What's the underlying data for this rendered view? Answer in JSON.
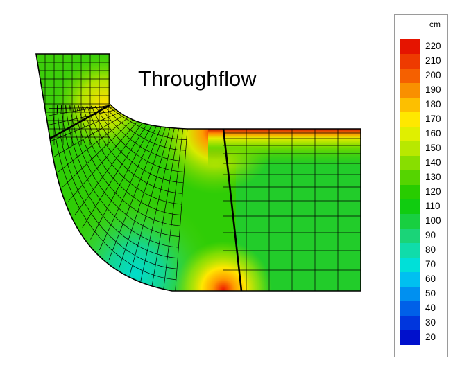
{
  "title": "Throughflow",
  "legend": {
    "unit": "cm",
    "levels": [
      {
        "label": "220",
        "color": "#e51400"
      },
      {
        "label": "210",
        "color": "#ee3a00"
      },
      {
        "label": "200",
        "color": "#f56000"
      },
      {
        "label": "190",
        "color": "#f99000"
      },
      {
        "label": "180",
        "color": "#fdbf00"
      },
      {
        "label": "170",
        "color": "#ffe800"
      },
      {
        "label": "160",
        "color": "#e0ef00"
      },
      {
        "label": "150",
        "color": "#b8e800"
      },
      {
        "label": "140",
        "color": "#88de00"
      },
      {
        "label": "130",
        "color": "#55d400"
      },
      {
        "label": "120",
        "color": "#28cc00"
      },
      {
        "label": "110",
        "color": "#10cc10"
      },
      {
        "label": "100",
        "color": "#18cf40"
      },
      {
        "label": "90",
        "color": "#1ad478"
      },
      {
        "label": "80",
        "color": "#10dcaa"
      },
      {
        "label": "70",
        "color": "#00e0d8"
      },
      {
        "label": "60",
        "color": "#00c0f0"
      },
      {
        "label": "50",
        "color": "#0090f0"
      },
      {
        "label": "40",
        "color": "#0060e8"
      },
      {
        "label": "30",
        "color": "#0036dd"
      },
      {
        "label": "20",
        "color": "#0010cc"
      }
    ]
  }
}
